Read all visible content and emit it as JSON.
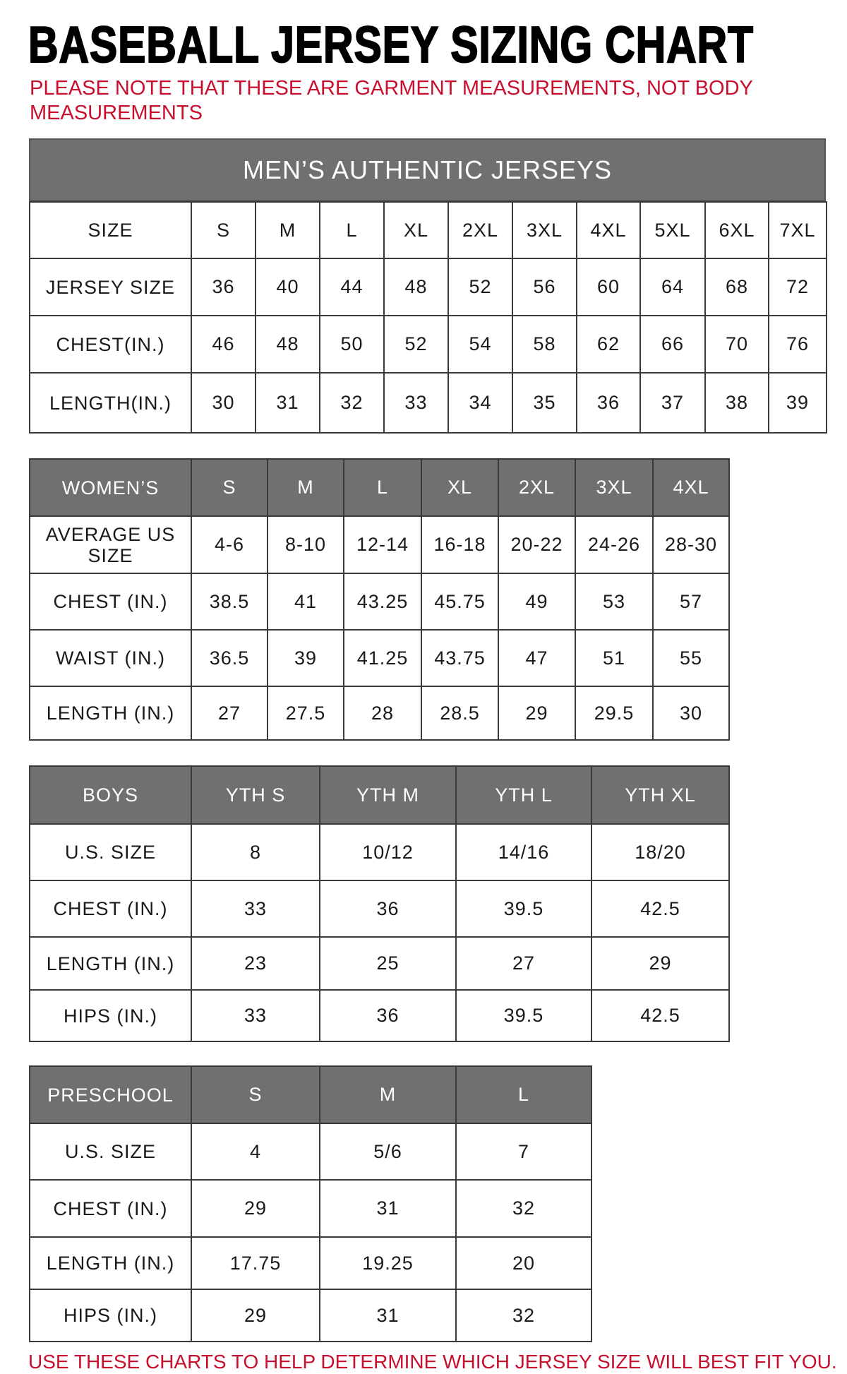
{
  "title": "BASEBALL JERSEY SIZING CHART",
  "note": "PLEASE NOTE THAT THESE ARE GARMENT MEASUREMENTS, NOT BODY MEASUREMENTS",
  "footer": "USE THESE CHARTS TO HELP DETERMINE WHICH JERSEY SIZE WILL BEST FIT YOU.",
  "colors": {
    "header_bg": "#707070",
    "accent_red": "#c8102e"
  },
  "tables": [
    {
      "id": "mens",
      "banner": "MEN’S AUTHENTIC JERSEYS",
      "header": [
        "SIZE",
        "S",
        "M",
        "L",
        "XL",
        "2XL",
        "3XL",
        "4XL",
        "5XL",
        "6XL",
        "7XL"
      ],
      "header_style": "plain",
      "rows": [
        [
          "JERSEY SIZE",
          "36",
          "40",
          "44",
          "48",
          "52",
          "56",
          "60",
          "64",
          "68",
          "72"
        ],
        [
          "CHEST(IN.)",
          "46",
          "48",
          "50",
          "52",
          "54",
          "58",
          "62",
          "66",
          "70",
          "76"
        ],
        [
          "LENGTH(IN.)",
          "30",
          "31",
          "32",
          "33",
          "34",
          "35",
          "36",
          "37",
          "38",
          "39"
        ]
      ]
    },
    {
      "id": "womens",
      "header": [
        "WOMEN’S",
        "S",
        "M",
        "L",
        "XL",
        "2XL",
        "3XL",
        "4XL"
      ],
      "header_style": "gray",
      "rows": [
        [
          "AVERAGE US SIZE",
          "4-6",
          "8-10",
          "12-14",
          "16-18",
          "20-22",
          "24-26",
          "28-30"
        ],
        [
          "CHEST (IN.)",
          "38.5",
          "41",
          "43.25",
          "45.75",
          "49",
          "53",
          "57"
        ],
        [
          "WAIST (IN.)",
          "36.5",
          "39",
          "41.25",
          "43.75",
          "47",
          "51",
          "55"
        ],
        [
          "LENGTH (IN.)",
          "27",
          "27.5",
          "28",
          "28.5",
          "29",
          "29.5",
          "30"
        ]
      ]
    },
    {
      "id": "boys",
      "header": [
        "BOYS",
        "YTH S",
        "YTH M",
        "YTH L",
        "YTH XL"
      ],
      "header_style": "gray",
      "rows": [
        [
          "U.S. SIZE",
          "8",
          "10/12",
          "14/16",
          "18/20"
        ],
        [
          "CHEST (IN.)",
          "33",
          "36",
          "39.5",
          "42.5"
        ],
        [
          "LENGTH (IN.)",
          "23",
          "25",
          "27",
          "29"
        ],
        [
          "HIPS (IN.)",
          "33",
          "36",
          "39.5",
          "42.5"
        ]
      ]
    },
    {
      "id": "preschool",
      "header": [
        "PRESCHOOL",
        "S",
        "M",
        "L"
      ],
      "header_style": "gray",
      "rows": [
        [
          "U.S. SIZE",
          "4",
          "5/6",
          "7"
        ],
        [
          "CHEST (IN.)",
          "29",
          "31",
          "32"
        ],
        [
          "LENGTH (IN.)",
          "17.75",
          "19.25",
          "20"
        ],
        [
          "HIPS (IN.)",
          "29",
          "31",
          "32"
        ]
      ]
    }
  ]
}
